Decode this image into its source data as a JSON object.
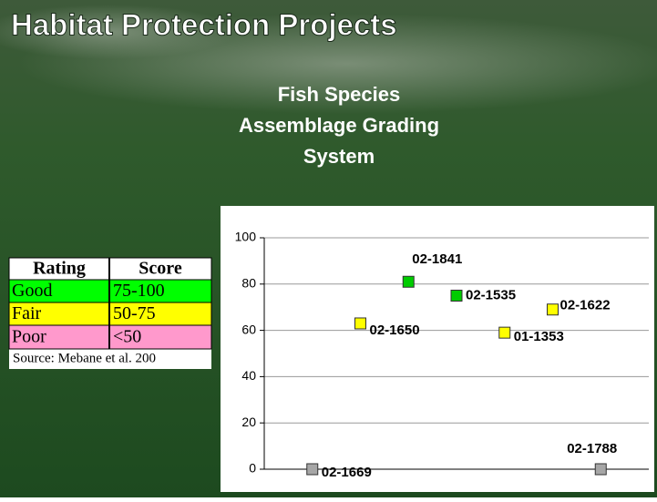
{
  "title": "Habitat Protection Projects",
  "subtitle": [
    "Fish Species",
    "Assemblage Grading",
    "System"
  ],
  "table": {
    "header": [
      "Rating",
      "Score"
    ],
    "rows": [
      [
        "Good",
        "75-100"
      ],
      [
        "Fair",
        "50-75"
      ],
      [
        "Poor",
        "<50"
      ]
    ],
    "row_colors": [
      "#00ff00",
      "#ffff00",
      "#ff99cc"
    ],
    "source": "Source:  Mebane et al. 200"
  },
  "chart_data": {
    "type": "scatter",
    "x": [
      1,
      2,
      3,
      4,
      5,
      6,
      7
    ],
    "values": [
      0,
      63,
      81,
      75,
      59,
      69,
      0
    ],
    "labels": [
      "02-1669",
      "02-1650",
      "02-1841",
      "02-1535",
      "01-1353",
      "02-1622",
      "02-1788"
    ],
    "colors": [
      "#a6a6a6",
      "#ffff00",
      "#00cc00",
      "#00cc00",
      "#ffff00",
      "#ffff00",
      "#a6a6a6"
    ],
    "xlim": [
      0,
      8
    ],
    "ylim": [
      0,
      100
    ],
    "yticks": [
      0,
      20,
      40,
      60,
      80,
      100
    ],
    "grid": true
  }
}
